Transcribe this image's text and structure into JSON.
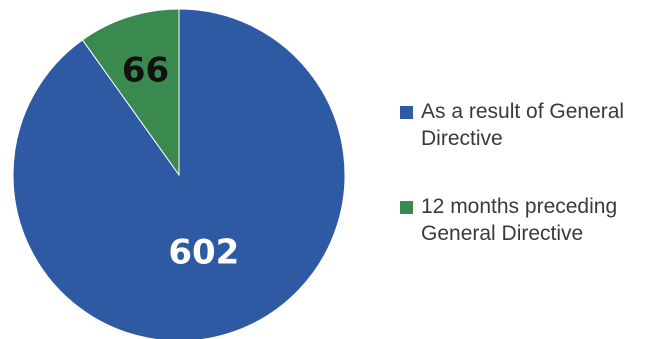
{
  "chart_data": {
    "type": "pie",
    "slices": [
      {
        "label": "12 months preceding General Directive",
        "value": 66,
        "color": "#3a8a4f",
        "label_color": "#111111"
      },
      {
        "label": "As a result of General Directive",
        "value": 602,
        "color": "#2e5aa4",
        "label_color": "#ffffff"
      }
    ],
    "legend_position": "right",
    "legend_order": [
      1,
      0
    ]
  },
  "legend": {
    "items": [
      {
        "label": "As a result of General Directive",
        "color": "#2e5aa4"
      },
      {
        "label": "12 months preceding General Directive",
        "color": "#3a8a4f"
      }
    ]
  }
}
